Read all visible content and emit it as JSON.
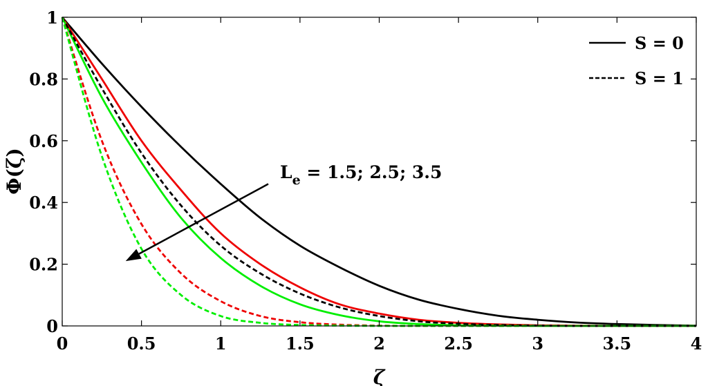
{
  "chart_data": {
    "type": "line",
    "xlabel": "ζ",
    "ylabel": "Φ(ζ)",
    "xlim": [
      0,
      4
    ],
    "ylim": [
      0,
      1
    ],
    "xticks": [
      0,
      0.5,
      1,
      1.5,
      2,
      2.5,
      3,
      3.5,
      4
    ],
    "yticks": [
      0,
      0.2,
      0.4,
      0.6,
      0.8,
      1
    ],
    "xtick_labels": [
      "0",
      "0.5",
      "1",
      "1.5",
      "2",
      "2.5",
      "3",
      "3.5",
      "4"
    ],
    "ytick_labels": [
      "0",
      "0.2",
      "0.4",
      "0.6",
      "0.8",
      "1"
    ],
    "grid": false,
    "legend_position": "top-right",
    "legend": [
      {
        "label": "S = 0",
        "style": "solid"
      },
      {
        "label": "S = 1",
        "style": "dashed"
      }
    ],
    "annotation": {
      "base": "L",
      "subscript": "e",
      "rest": " = 1.5; 2.5; 3.5",
      "arrow_from": [
        1.3,
        0.46
      ],
      "arrow_to": [
        0.4,
        0.21
      ]
    },
    "series": [
      {
        "style": "solid",
        "color": "#000000",
        "x": [
          0,
          0.25,
          0.5,
          0.75,
          1,
          1.25,
          1.5,
          1.75,
          2,
          2.25,
          2.5,
          2.75,
          3,
          3.25,
          3.5,
          3.75,
          4
        ],
        "y": [
          1,
          0.85,
          0.71,
          0.58,
          0.46,
          0.35,
          0.26,
          0.19,
          0.13,
          0.085,
          0.055,
          0.033,
          0.02,
          0.011,
          0.006,
          0.003,
          0.001
        ]
      },
      {
        "style": "solid",
        "color": "#ee0000",
        "x": [
          0,
          0.25,
          0.5,
          0.75,
          1,
          1.25,
          1.5,
          1.75,
          2,
          2.25,
          2.5,
          2.75,
          3,
          3.25,
          3.5,
          3.75,
          4
        ],
        "y": [
          1,
          0.8,
          0.6,
          0.44,
          0.3,
          0.2,
          0.125,
          0.07,
          0.04,
          0.02,
          0.01,
          0.005,
          0.002,
          0.001,
          0,
          0,
          0
        ]
      },
      {
        "style": "solid",
        "color": "#00ee00",
        "x": [
          0,
          0.25,
          0.5,
          0.75,
          1,
          1.25,
          1.5,
          1.75,
          2,
          2.25,
          2.5,
          2.75,
          3,
          3.25,
          3.5,
          3.75,
          4
        ],
        "y": [
          1,
          0.74,
          0.53,
          0.35,
          0.22,
          0.13,
          0.07,
          0.035,
          0.015,
          0.006,
          0.002,
          0.001,
          0,
          0,
          0,
          0,
          0
        ]
      },
      {
        "style": "dashed",
        "color": "#000000",
        "x": [
          0,
          0.25,
          0.5,
          0.75,
          1,
          1.25,
          1.5,
          1.75,
          2,
          2.25,
          2.5,
          2.75,
          3,
          3.25,
          3.5,
          3.75,
          4
        ],
        "y": [
          1,
          0.77,
          0.56,
          0.39,
          0.26,
          0.17,
          0.105,
          0.06,
          0.032,
          0.015,
          0.007,
          0.003,
          0.001,
          0,
          0,
          0,
          0
        ]
      },
      {
        "style": "dashed",
        "color": "#ee0000",
        "x": [
          0,
          0.25,
          0.5,
          0.75,
          1,
          1.25,
          1.5,
          1.75,
          2,
          2.25,
          2.5,
          2.75,
          3,
          3.25,
          3.5,
          3.75,
          4
        ],
        "y": [
          1,
          0.6,
          0.33,
          0.17,
          0.08,
          0.032,
          0.012,
          0.004,
          0.001,
          0,
          0,
          0,
          0,
          0,
          0,
          0,
          0
        ]
      },
      {
        "style": "dashed",
        "color": "#00ee00",
        "x": [
          0,
          0.25,
          0.5,
          0.75,
          1,
          1.25,
          1.5,
          1.75,
          2,
          2.25,
          2.5,
          2.75,
          3,
          3.25,
          3.5,
          3.75,
          4
        ],
        "y": [
          1,
          0.55,
          0.25,
          0.1,
          0.032,
          0.01,
          0.003,
          0.001,
          0,
          0,
          0,
          0,
          0,
          0,
          0,
          0,
          0
        ]
      }
    ]
  }
}
